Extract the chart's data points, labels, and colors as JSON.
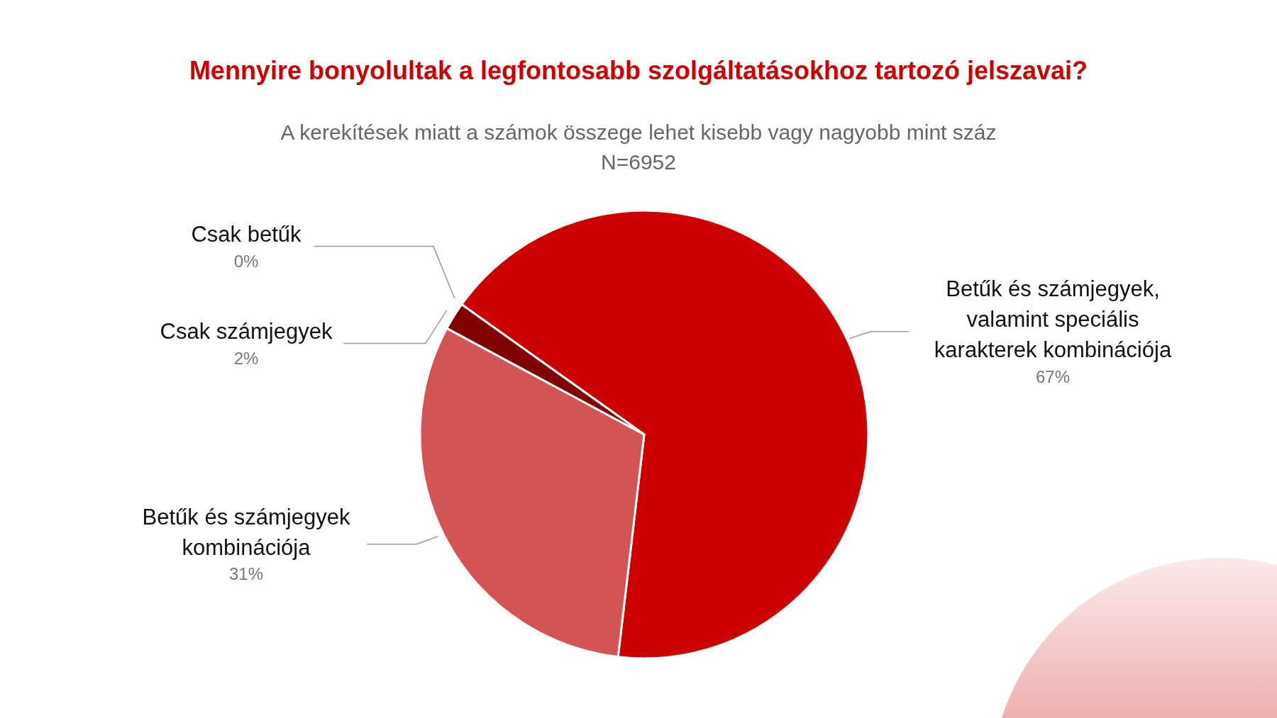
{
  "chart_data": {
    "type": "pie",
    "title": "Mennyire bonyolultak a legfontosabb szolgáltatásokhoz tartozó jelszavai?",
    "subtitle": "A kerekítések miatt a számok összege lehet kisebb vagy nagyobb mint száz\nN=6952",
    "categories": [
      "Betűk és számjegyek, valamint speciális karakterek kombinációja",
      "Betűk és számjegyek kombinációja",
      "Csak számjegyek",
      "Csak betűk"
    ],
    "values": [
      67,
      31,
      2,
      0
    ],
    "colors": [
      "#cc0000",
      "#d35454",
      "#800000",
      "#e06666"
    ],
    "value_labels": [
      "67%",
      "31%",
      "2%",
      "0%"
    ]
  }
}
